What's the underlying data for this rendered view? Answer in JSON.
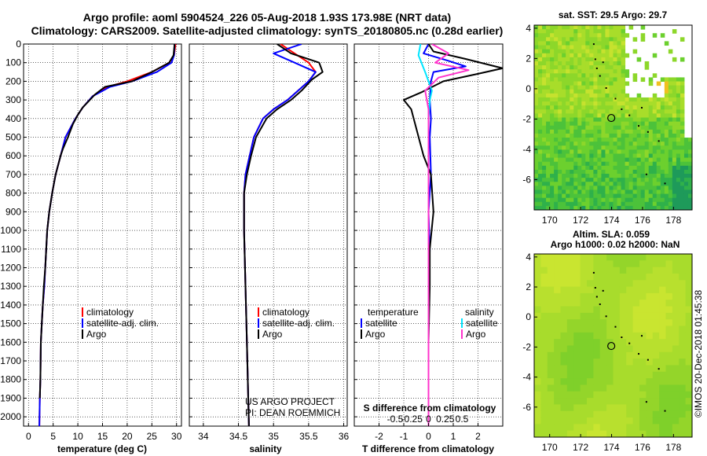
{
  "header": {
    "line1": "Argo profile: aoml 5904524_226 05-Aug-2018 1.93S 173.98E (NRT data)",
    "line2": "Climatology: CARS2009. Satellite-adjusted climatology: synTS_20180805.nc (0.28d earlier)"
  },
  "credit": {
    "project": "US ARGO PROJECT",
    "pi": "PI: DEAN ROEMMICH",
    "stamp": "©IMOS 20-Dec-2018 01:45:38"
  },
  "colors": {
    "climatology": "#ff0000",
    "satellite": "#0000ff",
    "argo": "#000000",
    "s_satellite": "#00e5ff",
    "s_argo": "#ff33cc"
  },
  "chart_data": [
    {
      "type": "line",
      "panel": "temperature",
      "xlabel": "temperature (deg C)",
      "xlim": [
        -1,
        31
      ],
      "ylim": [
        2050,
        0
      ],
      "xticks": [
        0,
        5,
        10,
        15,
        20,
        25,
        30
      ],
      "yticks": [
        0,
        100,
        200,
        300,
        400,
        500,
        600,
        700,
        800,
        900,
        1000,
        1100,
        1200,
        1300,
        1400,
        1500,
        1600,
        1700,
        1800,
        1900,
        2000
      ],
      "legend": [
        "climatology",
        "satellite-adj. clim.",
        "Argo"
      ],
      "series": [
        {
          "name": "climatology",
          "color": "#ff0000",
          "x": [
            29.8,
            29.5,
            28.5,
            25,
            20,
            16,
            13,
            11,
            9.5,
            7.5,
            6.5,
            5.5,
            4.8,
            4.2,
            3.8,
            3.4,
            3.2,
            2.9,
            2.7,
            2.5,
            2.4,
            2.3,
            2.2
          ],
          "y": [
            0,
            60,
            100,
            150,
            200,
            230,
            280,
            340,
            400,
            500,
            600,
            700,
            800,
            900,
            1000,
            1200,
            1300,
            1400,
            1500,
            1600,
            1800,
            1900,
            2050
          ]
        },
        {
          "name": "satellite-adj. clim.",
          "color": "#0000ff",
          "x": [
            29.6,
            29.5,
            29,
            26,
            21,
            16.5,
            13,
            11,
            9.5,
            7.5,
            6.5,
            5.5,
            4.8,
            4.2,
            3.8,
            3.4,
            3.2,
            2.9,
            2.7,
            2.5,
            2.4,
            2.3,
            2.2
          ],
          "y": [
            0,
            60,
            100,
            150,
            200,
            230,
            280,
            340,
            400,
            500,
            600,
            700,
            800,
            900,
            1000,
            1200,
            1300,
            1400,
            1500,
            1600,
            1800,
            1900,
            2050
          ]
        },
        {
          "name": "Argo",
          "color": "#000000",
          "x": [
            29.6,
            29.4,
            28.5,
            25,
            21,
            15.5,
            13.5,
            11,
            10,
            9,
            8,
            7,
            6.5,
            5.5,
            4.8,
            4.2,
            3.8,
            3.4,
            3.1,
            2.9,
            2.7,
            2.5,
            2.4,
            2.3
          ],
          "y": [
            0,
            60,
            100,
            150,
            200,
            230,
            270,
            340,
            380,
            430,
            500,
            560,
            600,
            700,
            800,
            900,
            1000,
            1200,
            1300,
            1400,
            1500,
            1600,
            1800,
            1900
          ]
        }
      ]
    },
    {
      "type": "line",
      "panel": "salinity",
      "xlabel": "salinity",
      "xlim": [
        33.8,
        36.05
      ],
      "ylim": [
        2050,
        0
      ],
      "xticks": [
        34,
        34.5,
        35,
        35.5,
        36
      ],
      "legend": [
        "climatology",
        "satellite-adj. clim.",
        "Argo"
      ],
      "series": [
        {
          "name": "climatology",
          "color": "#ff0000",
          "x": [
            35.1,
            35.3,
            35.5,
            35.6,
            35.5,
            35.35,
            35.2,
            35.0,
            34.85,
            34.72,
            34.66,
            34.6,
            34.58,
            34.58,
            34.6,
            34.62,
            34.64,
            34.65
          ],
          "y": [
            0,
            50,
            100,
            150,
            200,
            250,
            300,
            350,
            400,
            500,
            600,
            700,
            800,
            1000,
            1300,
            1600,
            1900,
            2050
          ]
        },
        {
          "name": "satellite-adj. clim.",
          "color": "#0000ff",
          "x": [
            35.4,
            35.0,
            35.3,
            35.6,
            35.5,
            35.35,
            35.2,
            35.0,
            34.85,
            34.72,
            34.66,
            34.6,
            34.58,
            34.58,
            34.6,
            34.62,
            34.64,
            34.65
          ],
          "y": [
            0,
            50,
            100,
            150,
            200,
            250,
            300,
            350,
            400,
            500,
            600,
            700,
            800,
            1000,
            1300,
            1600,
            1900,
            2050
          ]
        },
        {
          "name": "Argo",
          "color": "#000000",
          "x": [
            35.05,
            35.25,
            35.65,
            35.7,
            35.55,
            35.4,
            35.25,
            35.05,
            34.9,
            34.75,
            34.68,
            34.62,
            34.58,
            34.58,
            34.6,
            34.62,
            34.64,
            34.65
          ],
          "y": [
            0,
            50,
            100,
            150,
            190,
            250,
            300,
            350,
            400,
            500,
            600,
            700,
            800,
            1000,
            1300,
            1600,
            1900,
            2050
          ]
        }
      ]
    },
    {
      "type": "line",
      "panel": "difference",
      "xlabel": "T difference from climatology",
      "xlabel2": "S difference from climatology",
      "xlim": [
        -3,
        3
      ],
      "ylim": [
        2050,
        0
      ],
      "xticks": [
        -2,
        -1,
        0,
        1,
        2
      ],
      "s_ticks": [
        {
          "value": -0.5,
          "label": "-0.5"
        },
        {
          "value": -0.25,
          "label": "-0.25"
        },
        {
          "value": 0,
          "label": "0"
        },
        {
          "value": 0.25,
          "label": "0.25"
        },
        {
          "value": 0.5,
          "label": "0.5"
        }
      ],
      "legend_left_title": "temperature",
      "legend_right_title": "salinity",
      "legend_left": [
        "satellite",
        "Argo"
      ],
      "legend_right": [
        "satellite",
        "Argo"
      ],
      "series": [
        {
          "name": "T satellite",
          "color": "#0000ff",
          "x": [
            0,
            -0.2,
            0.8,
            1.5,
            0.2,
            0.1,
            0.05,
            0.1,
            0.05,
            0.1,
            0,
            0.05,
            0,
            0,
            0,
            0
          ],
          "y": [
            0,
            50,
            90,
            120,
            150,
            200,
            300,
            400,
            500,
            700,
            900,
            1100,
            1400,
            1600,
            1900,
            2050
          ]
        },
        {
          "name": "T Argo",
          "color": "#000000",
          "x": [
            0,
            0.2,
            1.5,
            3.0,
            2.0,
            0.6,
            -0.3,
            -1.0,
            -0.7,
            -0.6,
            -0.4,
            -0.2,
            0.1,
            0.2,
            0.05,
            0.05,
            0,
            0,
            0
          ],
          "y": [
            0,
            40,
            80,
            130,
            160,
            200,
            260,
            300,
            350,
            400,
            500,
            600,
            700,
            900,
            1100,
            1300,
            1600,
            1900,
            2050
          ]
        },
        {
          "name": "S satellite",
          "color": "#00e5ff",
          "x": [
            -0.12,
            -0.15,
            -0.05,
            0,
            0.05,
            0.02,
            0,
            0,
            0,
            0,
            0
          ],
          "y": [
            0,
            60,
            150,
            200,
            250,
            300,
            400,
            600,
            1000,
            1500,
            2050
          ]
        },
        {
          "name": "S Argo",
          "color": "#ff33cc",
          "x": [
            0.05,
            0.3,
            0.1,
            0.6,
            0.15,
            -0.05,
            0,
            0,
            0,
            0
          ],
          "y": [
            0,
            50,
            100,
            140,
            180,
            250,
            350,
            600,
            1200,
            2050
          ]
        }
      ]
    },
    {
      "type": "heatmap",
      "panel": "sst-map",
      "title": "sat. SST: 29.5 Argo: 29.7",
      "xlim": [
        169,
        179.2
      ],
      "ylim": [
        -8,
        4.2
      ],
      "xticks": [
        170,
        172,
        174,
        176,
        178
      ],
      "yticks": [
        4,
        2,
        0,
        -2,
        -4,
        -6
      ],
      "float": {
        "lon": 173.98,
        "lat": -1.93
      }
    },
    {
      "type": "heatmap",
      "panel": "sla-map",
      "title": "Altim. SLA: 0.059",
      "subtitle": "Argo h1000: 0.02 h2000: NaN",
      "xlim": [
        169,
        179.2
      ],
      "ylim": [
        -8,
        4.2
      ],
      "xticks": [
        170,
        172,
        174,
        176,
        178
      ],
      "yticks": [
        4,
        2,
        0,
        -2,
        -4,
        -6
      ],
      "float": {
        "lon": 173.98,
        "lat": -1.93
      }
    }
  ]
}
